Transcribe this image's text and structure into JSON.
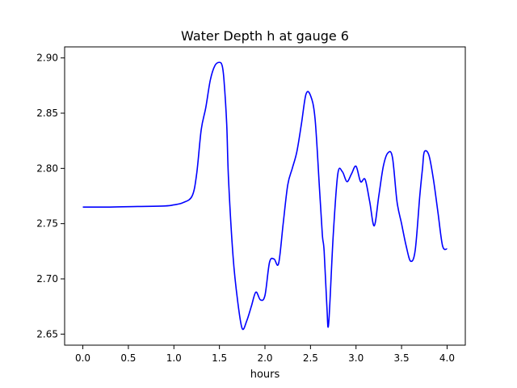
{
  "chart_data": {
    "type": "line",
    "title": "Water Depth h at gauge 6",
    "xlabel": "hours",
    "ylabel": "",
    "xlim": [
      -0.2,
      4.2
    ],
    "ylim": [
      2.64,
      2.91
    ],
    "x_ticks": [
      0.0,
      0.5,
      1.0,
      1.5,
      2.0,
      2.5,
      3.0,
      3.5,
      4.0
    ],
    "x_tick_labels": [
      "0.0",
      "0.5",
      "1.0",
      "1.5",
      "2.0",
      "2.5",
      "3.0",
      "3.5",
      "4.0"
    ],
    "y_ticks": [
      2.65,
      2.7,
      2.75,
      2.8,
      2.85,
      2.9
    ],
    "y_tick_labels": [
      "2.65",
      "2.70",
      "2.75",
      "2.80",
      "2.85",
      "2.90"
    ],
    "grid": false,
    "legend": "none",
    "series": [
      {
        "color": "#0000ff",
        "x": [
          0.0,
          0.3,
          0.6,
          0.9,
          1.0,
          1.1,
          1.2,
          1.25,
          1.3,
          1.35,
          1.4,
          1.45,
          1.5,
          1.53,
          1.55,
          1.58,
          1.6,
          1.65,
          1.7,
          1.75,
          1.8,
          1.85,
          1.9,
          1.95,
          2.0,
          2.05,
          2.1,
          2.15,
          2.2,
          2.25,
          2.3,
          2.35,
          2.4,
          2.45,
          2.5,
          2.55,
          2.6,
          2.63,
          2.65,
          2.68,
          2.7,
          2.75,
          2.8,
          2.85,
          2.9,
          2.95,
          3.0,
          3.05,
          3.1,
          3.15,
          3.2,
          3.25,
          3.3,
          3.35,
          3.4,
          3.45,
          3.5,
          3.55,
          3.6,
          3.65,
          3.7,
          3.73,
          3.75,
          3.8,
          3.85,
          3.9,
          3.95,
          4.0
        ],
        "y": [
          2.765,
          2.765,
          2.7655,
          2.766,
          2.767,
          2.769,
          2.775,
          2.795,
          2.835,
          2.855,
          2.88,
          2.893,
          2.896,
          2.893,
          2.88,
          2.84,
          2.79,
          2.72,
          2.68,
          2.655,
          2.662,
          2.675,
          2.688,
          2.681,
          2.685,
          2.715,
          2.718,
          2.714,
          2.75,
          2.785,
          2.8,
          2.815,
          2.84,
          2.867,
          2.866,
          2.845,
          2.78,
          2.74,
          2.725,
          2.675,
          2.66,
          2.74,
          2.795,
          2.797,
          2.788,
          2.795,
          2.802,
          2.788,
          2.79,
          2.77,
          2.748,
          2.775,
          2.802,
          2.814,
          2.81,
          2.77,
          2.75,
          2.73,
          2.716,
          2.726,
          2.775,
          2.8,
          2.815,
          2.812,
          2.79,
          2.76,
          2.73,
          2.727
        ],
        "x_sorted": true
      }
    ]
  }
}
